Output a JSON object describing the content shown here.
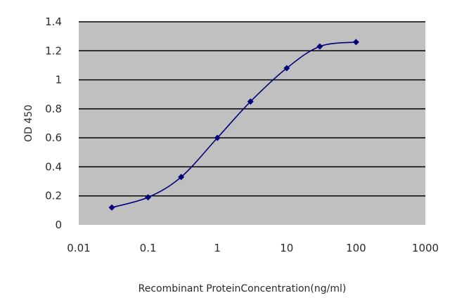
{
  "chart_data": {
    "type": "line",
    "xscale": "log",
    "x_ticks": [
      0.01,
      0.1,
      1,
      10,
      100,
      1000
    ],
    "x_tick_labels": [
      "0.01",
      "0.1",
      "1",
      "10",
      "100",
      "1000"
    ],
    "y_ticks": [
      0,
      0.2,
      0.4,
      0.6,
      0.8,
      1,
      1.2,
      1.4
    ],
    "y_tick_labels": [
      "0",
      "0.2",
      "0.4",
      "0.6",
      "0.8",
      "1",
      "1.2",
      "1.4"
    ],
    "xlim": [
      0.01,
      1000
    ],
    "ylim": [
      0,
      1.4
    ],
    "xlabel": "Recombinant ProteinConcentration(ng/ml)",
    "ylabel": "OD 450",
    "grid": "horizontal",
    "legend": "none",
    "series": [
      {
        "x": [
          0.03,
          0.1,
          0.3,
          1,
          3,
          10,
          30,
          100
        ],
        "y": [
          0.12,
          0.19,
          0.33,
          0.6,
          0.85,
          1.08,
          1.23,
          1.26
        ]
      }
    ],
    "colors": {
      "plot_background": "#c0c0c0",
      "gridline": "#000000",
      "series": "#00007a"
    }
  }
}
